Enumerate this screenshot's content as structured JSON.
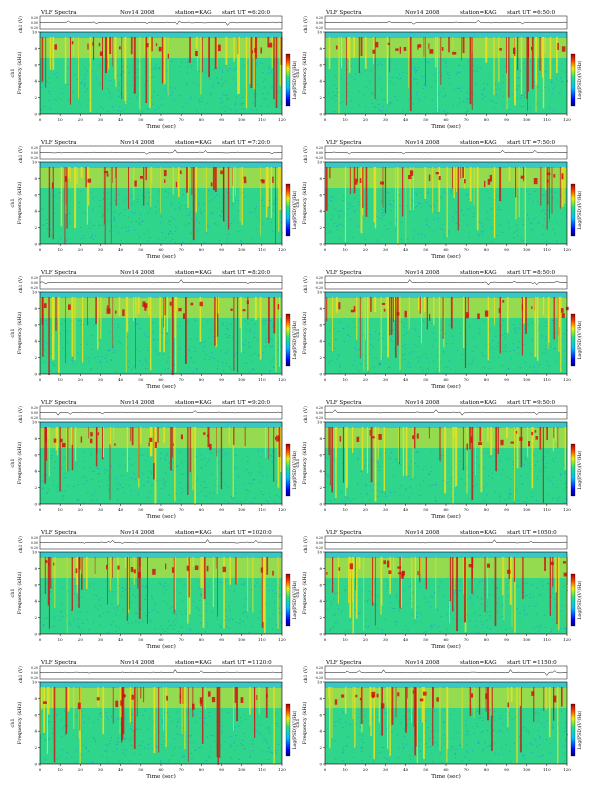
{
  "labels": {
    "header_title": "VLF  Spectra",
    "station": "station=KAG",
    "start_prefix": "start  UT  =",
    "ch1_axis": "ch1 (V)",
    "freq_axis": "Frequency  (kHz)",
    "freq_axis_prefix": "ch1",
    "time_axis": "Time  (sec)",
    "colorbar_label": "Log(PSD)(V²/Hz)",
    "ch1_ticks": [
      "0.20",
      "0.00",
      "-0.20"
    ],
    "freq_ticks": [
      "0",
      "2",
      "4",
      "6",
      "8",
      "10"
    ],
    "time_ticks": [
      "0",
      "10",
      "20",
      "30",
      "40",
      "50",
      "60",
      "70",
      "80",
      "90",
      "100",
      "110",
      "120"
    ]
  },
  "colors": {
    "spectrogram_background": "#2fd58a",
    "high_band_color": "#e8e020",
    "burst_color": "#d01010",
    "low_power_color": "#1f8fe0",
    "top_band_color": "#40c0e0"
  },
  "chart_data": [
    {
      "type": "heatmap",
      "title": "VLF  Spectra",
      "date": "Nov14 2008",
      "station": "KAG",
      "start_ut": "6:20:0",
      "xlabel": "Time  (sec)",
      "ylabel": "Frequency  (kHz)",
      "xlim": [
        0,
        120
      ],
      "ylim": [
        0,
        10
      ],
      "ch1_ylim": [
        -0.2,
        0.2
      ],
      "colorbar": "Log(PSD)(V²/Hz)"
    },
    {
      "type": "heatmap",
      "title": "VLF  Spectra",
      "date": "Nov14 2008",
      "station": "KAG",
      "start_ut": "6:50:0",
      "xlabel": "Time  (sec)",
      "ylabel": "Frequency  (kHz)",
      "xlim": [
        0,
        120
      ],
      "ylim": [
        0,
        10
      ],
      "ch1_ylim": [
        -0.2,
        0.2
      ],
      "colorbar": "Log(PSD)(V²/Hz)"
    },
    {
      "type": "heatmap",
      "title": "VLF  Spectra",
      "date": "Nov14 2008",
      "station": "KAG",
      "start_ut": "7:20:0",
      "xlabel": "Time  (sec)",
      "ylabel": "Frequency  (kHz)",
      "xlim": [
        0,
        120
      ],
      "ylim": [
        0,
        10
      ],
      "ch1_ylim": [
        -0.2,
        0.2
      ],
      "colorbar": "Log(PSD)(V²/Hz)"
    },
    {
      "type": "heatmap",
      "title": "VLF  Spectra",
      "date": "Nov14 2008",
      "station": "KAG",
      "start_ut": "7:50:0",
      "xlabel": "Time  (sec)",
      "ylabel": "Frequency  (kHz)",
      "xlim": [
        0,
        120
      ],
      "ylim": [
        0,
        10
      ],
      "ch1_ylim": [
        -0.2,
        0.2
      ],
      "colorbar": "Log(PSD)(V²/Hz)"
    },
    {
      "type": "heatmap",
      "title": "VLF  Spectra",
      "date": "Nov14 2008",
      "station": "KAG",
      "start_ut": "8:20:0",
      "xlabel": "Time  (sec)",
      "ylabel": "Frequency  (kHz)",
      "xlim": [
        0,
        120
      ],
      "ylim": [
        0,
        10
      ],
      "ch1_ylim": [
        -0.2,
        0.2
      ],
      "colorbar": "Log(PSD)(V²/Hz)"
    },
    {
      "type": "heatmap",
      "title": "VLF  Spectra",
      "date": "Nov14 2008",
      "station": "KAG",
      "start_ut": "8:50:0",
      "xlabel": "Time  (sec)",
      "ylabel": "Frequency  (kHz)",
      "xlim": [
        0,
        120
      ],
      "ylim": [
        0,
        10
      ],
      "ch1_ylim": [
        -0.2,
        0.2
      ],
      "colorbar": "Log(PSD)(V²/Hz)"
    },
    {
      "type": "heatmap",
      "title": "VLF  Spectra",
      "date": "Nov14 2008",
      "station": "KAG",
      "start_ut": "9:20:0",
      "xlabel": "Time  (sec)",
      "ylabel": "Frequency  (kHz)",
      "xlim": [
        0,
        120
      ],
      "ylim": [
        0,
        10
      ],
      "ch1_ylim": [
        -0.2,
        0.2
      ],
      "colorbar": "Log(PSD)(V²/Hz)"
    },
    {
      "type": "heatmap",
      "title": "VLF  Spectra",
      "date": "Nov14 2008",
      "station": "KAG",
      "start_ut": "9:50:0",
      "xlabel": "Time  (sec)",
      "ylabel": "Frequency  (kHz)",
      "xlim": [
        0,
        120
      ],
      "ylim": [
        0,
        10
      ],
      "ch1_ylim": [
        -0.2,
        0.2
      ],
      "colorbar": "Log(PSD)(V²/Hz)"
    },
    {
      "type": "heatmap",
      "title": "VLF  Spectra",
      "date": "Nov14 2008",
      "station": "KAG",
      "start_ut": "1020:0",
      "xlabel": "Time  (sec)",
      "ylabel": "Frequency  (kHz)",
      "xlim": [
        0,
        120
      ],
      "ylim": [
        0,
        10
      ],
      "ch1_ylim": [
        -0.2,
        0.2
      ],
      "colorbar": "Log(PSD)(V²/Hz)"
    },
    {
      "type": "heatmap",
      "title": "VLF  Spectra",
      "date": "Nov14 2008",
      "station": "KAG",
      "start_ut": "1050:0",
      "xlabel": "Time  (sec)",
      "ylabel": "Frequency  (kHz)",
      "xlim": [
        0,
        120
      ],
      "ylim": [
        0,
        10
      ],
      "ch1_ylim": [
        -0.2,
        0.2
      ],
      "colorbar": "Log(PSD)(V²/Hz)"
    },
    {
      "type": "heatmap",
      "title": "VLF  Spectra",
      "date": "Nov14 2008",
      "station": "KAG",
      "start_ut": "1120:0",
      "xlabel": "Time  (sec)",
      "ylabel": "Frequency  (kHz)",
      "xlim": [
        0,
        120
      ],
      "ylim": [
        0,
        10
      ],
      "ch1_ylim": [
        -0.2,
        0.2
      ],
      "colorbar": "Log(PSD)(V²/Hz)"
    },
    {
      "type": "heatmap",
      "title": "VLF  Spectra",
      "date": "Nov14 2008",
      "station": "KAG",
      "start_ut": "1150:0",
      "xlabel": "Time  (sec)",
      "ylabel": "Frequency  (kHz)",
      "xlim": [
        0,
        120
      ],
      "ylim": [
        0,
        10
      ],
      "ch1_ylim": [
        -0.2,
        0.2
      ],
      "colorbar": "Log(PSD)(V²/Hz)"
    }
  ]
}
